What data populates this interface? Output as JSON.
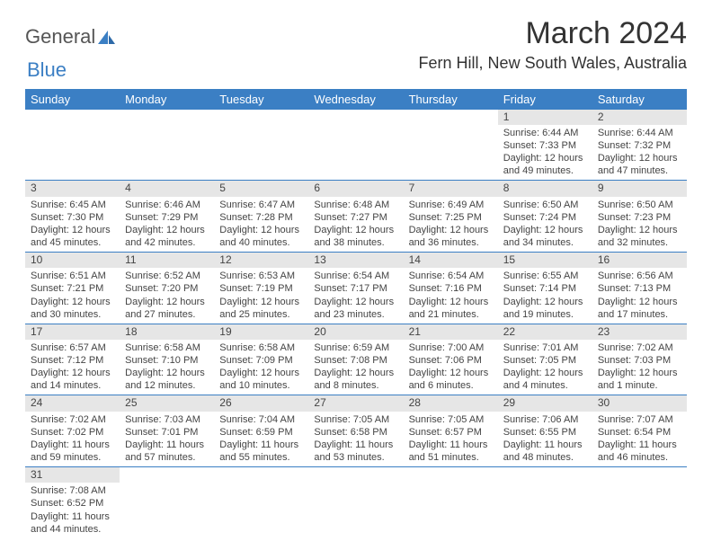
{
  "logo": {
    "text1": "General",
    "text2": "Blue"
  },
  "title": "March 2024",
  "location": "Fern Hill, New South Wales, Australia",
  "colors": {
    "header_bg": "#3b7fc4",
    "header_fg": "#ffffff",
    "daynum_bg": "#e6e6e6",
    "rule": "#3b7fc4"
  },
  "dayNames": [
    "Sunday",
    "Monday",
    "Tuesday",
    "Wednesday",
    "Thursday",
    "Friday",
    "Saturday"
  ],
  "weeks": [
    [
      {
        "n": "",
        "sr": "",
        "ss": "",
        "dl1": "",
        "dl2": "",
        "empty": true
      },
      {
        "n": "",
        "sr": "",
        "ss": "",
        "dl1": "",
        "dl2": "",
        "empty": true
      },
      {
        "n": "",
        "sr": "",
        "ss": "",
        "dl1": "",
        "dl2": "",
        "empty": true
      },
      {
        "n": "",
        "sr": "",
        "ss": "",
        "dl1": "",
        "dl2": "",
        "empty": true
      },
      {
        "n": "",
        "sr": "",
        "ss": "",
        "dl1": "",
        "dl2": "",
        "empty": true
      },
      {
        "n": "1",
        "sr": "Sunrise: 6:44 AM",
        "ss": "Sunset: 7:33 PM",
        "dl1": "Daylight: 12 hours",
        "dl2": "and 49 minutes."
      },
      {
        "n": "2",
        "sr": "Sunrise: 6:44 AM",
        "ss": "Sunset: 7:32 PM",
        "dl1": "Daylight: 12 hours",
        "dl2": "and 47 minutes."
      }
    ],
    [
      {
        "n": "3",
        "sr": "Sunrise: 6:45 AM",
        "ss": "Sunset: 7:30 PM",
        "dl1": "Daylight: 12 hours",
        "dl2": "and 45 minutes."
      },
      {
        "n": "4",
        "sr": "Sunrise: 6:46 AM",
        "ss": "Sunset: 7:29 PM",
        "dl1": "Daylight: 12 hours",
        "dl2": "and 42 minutes."
      },
      {
        "n": "5",
        "sr": "Sunrise: 6:47 AM",
        "ss": "Sunset: 7:28 PM",
        "dl1": "Daylight: 12 hours",
        "dl2": "and 40 minutes."
      },
      {
        "n": "6",
        "sr": "Sunrise: 6:48 AM",
        "ss": "Sunset: 7:27 PM",
        "dl1": "Daylight: 12 hours",
        "dl2": "and 38 minutes."
      },
      {
        "n": "7",
        "sr": "Sunrise: 6:49 AM",
        "ss": "Sunset: 7:25 PM",
        "dl1": "Daylight: 12 hours",
        "dl2": "and 36 minutes."
      },
      {
        "n": "8",
        "sr": "Sunrise: 6:50 AM",
        "ss": "Sunset: 7:24 PM",
        "dl1": "Daylight: 12 hours",
        "dl2": "and 34 minutes."
      },
      {
        "n": "9",
        "sr": "Sunrise: 6:50 AM",
        "ss": "Sunset: 7:23 PM",
        "dl1": "Daylight: 12 hours",
        "dl2": "and 32 minutes."
      }
    ],
    [
      {
        "n": "10",
        "sr": "Sunrise: 6:51 AM",
        "ss": "Sunset: 7:21 PM",
        "dl1": "Daylight: 12 hours",
        "dl2": "and 30 minutes."
      },
      {
        "n": "11",
        "sr": "Sunrise: 6:52 AM",
        "ss": "Sunset: 7:20 PM",
        "dl1": "Daylight: 12 hours",
        "dl2": "and 27 minutes."
      },
      {
        "n": "12",
        "sr": "Sunrise: 6:53 AM",
        "ss": "Sunset: 7:19 PM",
        "dl1": "Daylight: 12 hours",
        "dl2": "and 25 minutes."
      },
      {
        "n": "13",
        "sr": "Sunrise: 6:54 AM",
        "ss": "Sunset: 7:17 PM",
        "dl1": "Daylight: 12 hours",
        "dl2": "and 23 minutes."
      },
      {
        "n": "14",
        "sr": "Sunrise: 6:54 AM",
        "ss": "Sunset: 7:16 PM",
        "dl1": "Daylight: 12 hours",
        "dl2": "and 21 minutes."
      },
      {
        "n": "15",
        "sr": "Sunrise: 6:55 AM",
        "ss": "Sunset: 7:14 PM",
        "dl1": "Daylight: 12 hours",
        "dl2": "and 19 minutes."
      },
      {
        "n": "16",
        "sr": "Sunrise: 6:56 AM",
        "ss": "Sunset: 7:13 PM",
        "dl1": "Daylight: 12 hours",
        "dl2": "and 17 minutes."
      }
    ],
    [
      {
        "n": "17",
        "sr": "Sunrise: 6:57 AM",
        "ss": "Sunset: 7:12 PM",
        "dl1": "Daylight: 12 hours",
        "dl2": "and 14 minutes."
      },
      {
        "n": "18",
        "sr": "Sunrise: 6:58 AM",
        "ss": "Sunset: 7:10 PM",
        "dl1": "Daylight: 12 hours",
        "dl2": "and 12 minutes."
      },
      {
        "n": "19",
        "sr": "Sunrise: 6:58 AM",
        "ss": "Sunset: 7:09 PM",
        "dl1": "Daylight: 12 hours",
        "dl2": "and 10 minutes."
      },
      {
        "n": "20",
        "sr": "Sunrise: 6:59 AM",
        "ss": "Sunset: 7:08 PM",
        "dl1": "Daylight: 12 hours",
        "dl2": "and 8 minutes."
      },
      {
        "n": "21",
        "sr": "Sunrise: 7:00 AM",
        "ss": "Sunset: 7:06 PM",
        "dl1": "Daylight: 12 hours",
        "dl2": "and 6 minutes."
      },
      {
        "n": "22",
        "sr": "Sunrise: 7:01 AM",
        "ss": "Sunset: 7:05 PM",
        "dl1": "Daylight: 12 hours",
        "dl2": "and 4 minutes."
      },
      {
        "n": "23",
        "sr": "Sunrise: 7:02 AM",
        "ss": "Sunset: 7:03 PM",
        "dl1": "Daylight: 12 hours",
        "dl2": "and 1 minute."
      }
    ],
    [
      {
        "n": "24",
        "sr": "Sunrise: 7:02 AM",
        "ss": "Sunset: 7:02 PM",
        "dl1": "Daylight: 11 hours",
        "dl2": "and 59 minutes."
      },
      {
        "n": "25",
        "sr": "Sunrise: 7:03 AM",
        "ss": "Sunset: 7:01 PM",
        "dl1": "Daylight: 11 hours",
        "dl2": "and 57 minutes."
      },
      {
        "n": "26",
        "sr": "Sunrise: 7:04 AM",
        "ss": "Sunset: 6:59 PM",
        "dl1": "Daylight: 11 hours",
        "dl2": "and 55 minutes."
      },
      {
        "n": "27",
        "sr": "Sunrise: 7:05 AM",
        "ss": "Sunset: 6:58 PM",
        "dl1": "Daylight: 11 hours",
        "dl2": "and 53 minutes."
      },
      {
        "n": "28",
        "sr": "Sunrise: 7:05 AM",
        "ss": "Sunset: 6:57 PM",
        "dl1": "Daylight: 11 hours",
        "dl2": "and 51 minutes."
      },
      {
        "n": "29",
        "sr": "Sunrise: 7:06 AM",
        "ss": "Sunset: 6:55 PM",
        "dl1": "Daylight: 11 hours",
        "dl2": "and 48 minutes."
      },
      {
        "n": "30",
        "sr": "Sunrise: 7:07 AM",
        "ss": "Sunset: 6:54 PM",
        "dl1": "Daylight: 11 hours",
        "dl2": "and 46 minutes."
      }
    ],
    [
      {
        "n": "31",
        "sr": "Sunrise: 7:08 AM",
        "ss": "Sunset: 6:52 PM",
        "dl1": "Daylight: 11 hours",
        "dl2": "and 44 minutes."
      },
      {
        "n": "",
        "sr": "",
        "ss": "",
        "dl1": "",
        "dl2": "",
        "empty": true
      },
      {
        "n": "",
        "sr": "",
        "ss": "",
        "dl1": "",
        "dl2": "",
        "empty": true
      },
      {
        "n": "",
        "sr": "",
        "ss": "",
        "dl1": "",
        "dl2": "",
        "empty": true
      },
      {
        "n": "",
        "sr": "",
        "ss": "",
        "dl1": "",
        "dl2": "",
        "empty": true
      },
      {
        "n": "",
        "sr": "",
        "ss": "",
        "dl1": "",
        "dl2": "",
        "empty": true
      },
      {
        "n": "",
        "sr": "",
        "ss": "",
        "dl1": "",
        "dl2": "",
        "empty": true
      }
    ]
  ]
}
